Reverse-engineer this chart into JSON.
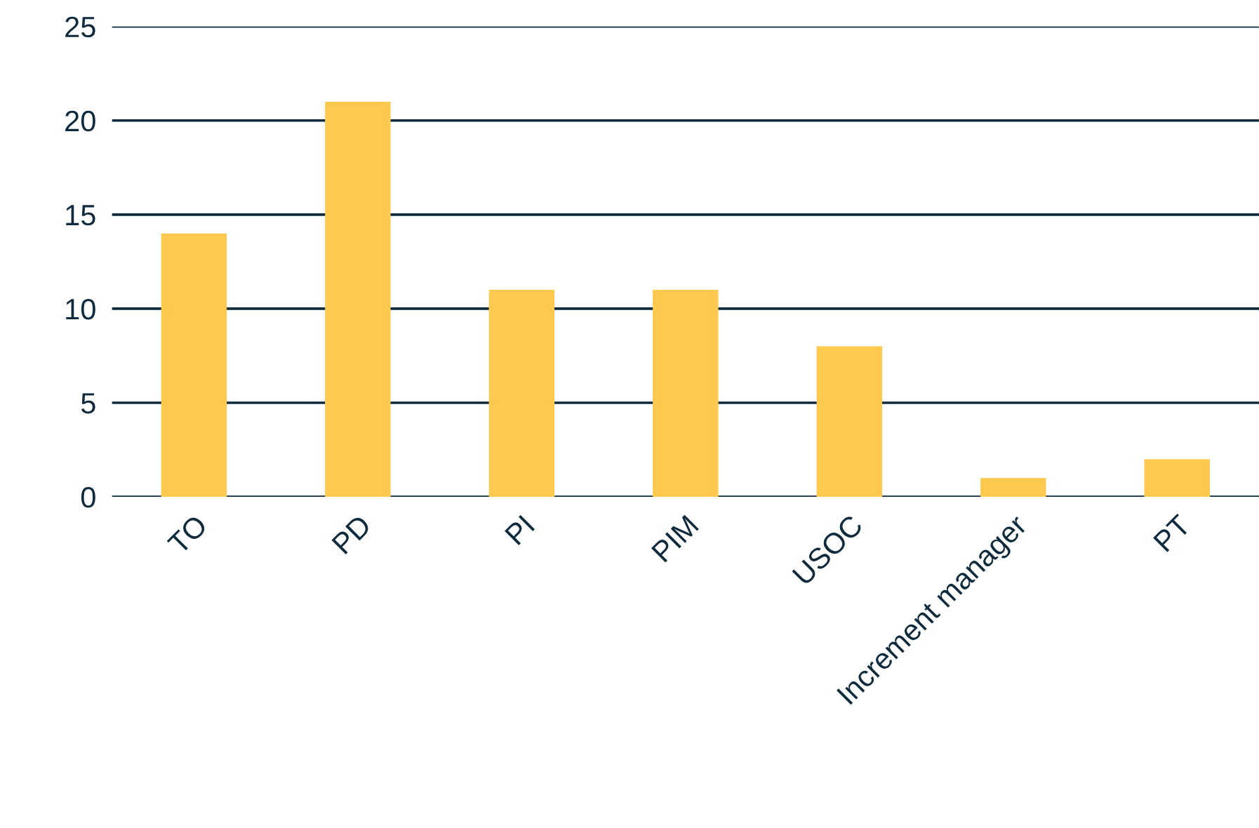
{
  "chart_data": {
    "type": "bar",
    "categories": [
      "TO",
      "PD",
      "PI",
      "PIM",
      "USOC",
      "Increment manager",
      "PT"
    ],
    "values": [
      14,
      21,
      11,
      11,
      8,
      1,
      2
    ],
    "color": "#ffc94f",
    "ylim": [
      0,
      25
    ],
    "yticks": [
      0,
      5,
      10,
      15,
      20,
      25
    ],
    "grid": "y"
  }
}
